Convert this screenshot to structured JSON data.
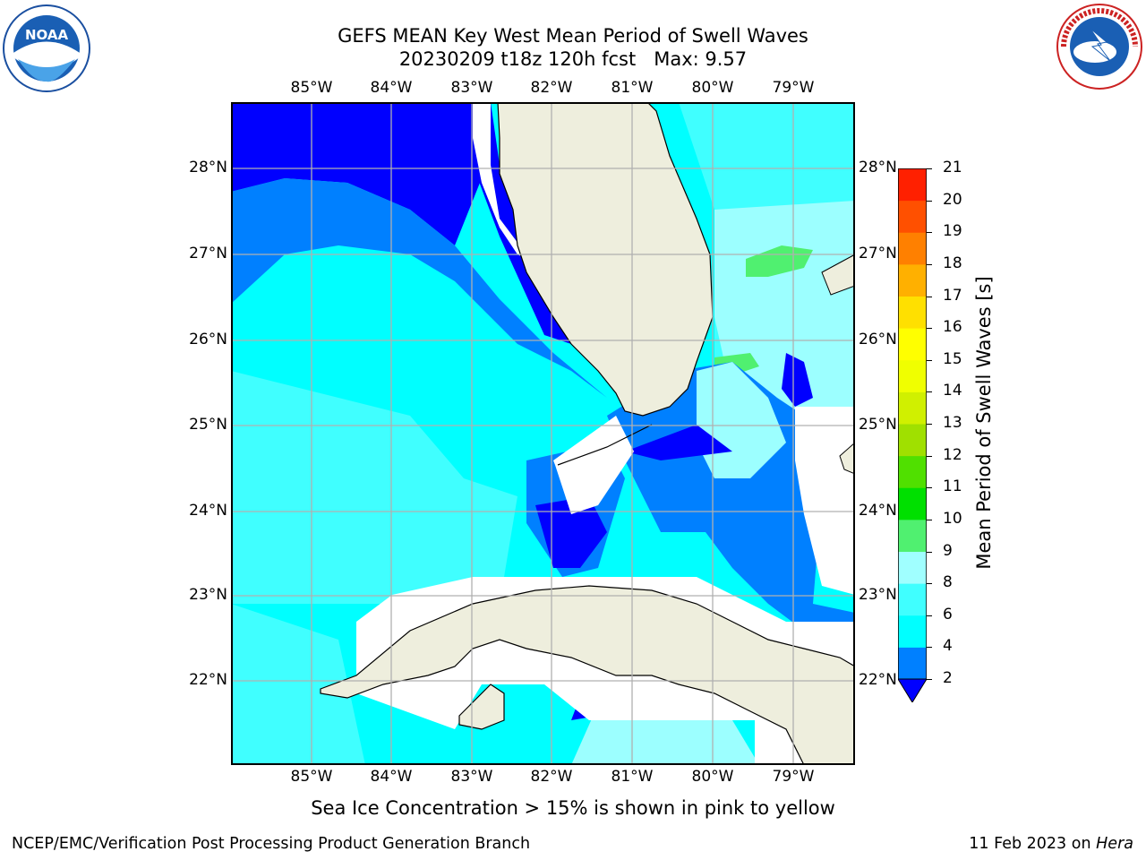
{
  "title": {
    "line1": "GEFS MEAN Key West Mean Period of Swell Waves",
    "line2": "20230209 t18z 120h fcst   Max: 9.57"
  },
  "map": {
    "lon_labels": [
      "85°W",
      "84°W",
      "83°W",
      "82°W",
      "81°W",
      "80°W",
      "79°W"
    ],
    "lat_labels": [
      "28°N",
      "27°N",
      "26°N",
      "25°N",
      "24°N",
      "23°N",
      "22°N"
    ],
    "colors": {
      "land": "#eeeedd",
      "deep_blue": "#0000ff",
      "blue": "#0080ff",
      "cyan": "#00ffff",
      "light_cyan": "#40ffff",
      "pale_cyan": "#9cffff",
      "green": "#50f070",
      "grid": "#b0b0b0"
    }
  },
  "colorbar": {
    "label": "Mean Period of Swell Waves [s]",
    "ticks": [
      "2",
      "4",
      "6",
      "8",
      "9",
      "10",
      "11",
      "12",
      "13",
      "14",
      "15",
      "16",
      "17",
      "18",
      "19",
      "20",
      "21"
    ],
    "colors": [
      "#0080ff",
      "#00ffff",
      "#40ffff",
      "#a0ffff",
      "#50f070",
      "#00e000",
      "#50e000",
      "#a0e000",
      "#d0f000",
      "#f0ff00",
      "#ffff00",
      "#ffe000",
      "#ffb000",
      "#ff8000",
      "#ff5000",
      "#ff2000",
      "#ff0000"
    ],
    "extend_color": "#0000ff"
  },
  "note": "Sea Ice Concentration > 15% is shown in pink to yellow",
  "footer": {
    "left": "NCEP/EMC/Verification Post Processing Product Generation Branch",
    "date": "11 Feb 2023 on",
    "host": "Hera"
  },
  "logos": {
    "noaa_text": "NOAA",
    "nws_text": "NATIONAL WEATHER SERVICE"
  }
}
